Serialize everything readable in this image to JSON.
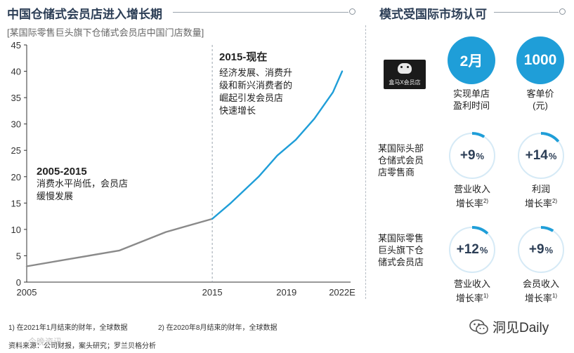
{
  "left_header": "中国仓储式会员店进入增长期",
  "right_header": "模式受国际市场认可",
  "chart_subtitle": "[某国际零售巨头旗下仓储式会员店中国门店数量]",
  "chart_data": {
    "type": "line",
    "title": "中国仓储式会员店进入增长期",
    "subtitle": "[某国际零售巨头旗下仓储式会员店中国门店数量]",
    "xlim": [
      2005,
      2022
    ],
    "ylim": [
      0,
      45
    ],
    "y_ticks": [
      "0",
      "5",
      "10",
      "15",
      "20",
      "25",
      "30",
      "35",
      "40",
      "45"
    ],
    "x_ticks": [
      {
        "value": 2005,
        "label": "2005"
      },
      {
        "value": 2015,
        "label": "2015"
      },
      {
        "value": 2019,
        "label": "2019"
      },
      {
        "value": 2022,
        "label": "2022E"
      }
    ],
    "series": [
      {
        "color": "#8a8a8a",
        "points": [
          [
            2005,
            3
          ],
          [
            2007.5,
            4.5
          ],
          [
            2010,
            6
          ],
          [
            2012.5,
            9.5
          ],
          [
            2015,
            12
          ]
        ]
      },
      {
        "color": "#1f9ed8",
        "points": [
          [
            2015,
            12
          ],
          [
            2016,
            15
          ],
          [
            2017.5,
            20
          ],
          [
            2018.5,
            24
          ],
          [
            2019.5,
            27
          ],
          [
            2020.5,
            31
          ],
          [
            2021.5,
            36
          ],
          [
            2022,
            40
          ]
        ]
      }
    ],
    "divider_x": 2015,
    "annotations": [
      {
        "title": "2005-2015",
        "lines": [
          "消费水平尚低，会员店",
          "缓慢发展"
        ]
      },
      {
        "title": "2015-现在",
        "lines": [
          "经济发展、消费升",
          "级和新兴消费者的",
          "崛起引发会员店",
          "快速增长"
        ]
      }
    ]
  },
  "logo_text": "盒马X会员店",
  "metrics_top": [
    {
      "value": "2月",
      "label_lines": [
        "实现单店",
        "盈利时间"
      ]
    },
    {
      "value": "1000",
      "label_lines": [
        "客单价",
        "(元)"
      ]
    }
  ],
  "rows": [
    {
      "label_lines": [
        "某国际头部",
        "仓储式会员",
        "店零售商"
      ],
      "items": [
        {
          "value": "+9",
          "unit": "%",
          "fraction": 0.09,
          "label_lines": [
            "营业收入",
            "增长率"
          ],
          "footnote": "2)"
        },
        {
          "value": "+14",
          "unit": "%",
          "fraction": 0.14,
          "label_lines": [
            "利润",
            "增长率"
          ],
          "footnote": "2)"
        }
      ]
    },
    {
      "label_lines": [
        "某国际零售",
        "巨头旗下仓",
        "储式会员店"
      ],
      "items": [
        {
          "value": "+12",
          "unit": "%",
          "fraction": 0.12,
          "label_lines": [
            "营业收入",
            "增长率"
          ],
          "footnote": "1)"
        },
        {
          "value": "+9",
          "unit": "%",
          "fraction": 0.09,
          "label_lines": [
            "会员收入",
            "增长率"
          ],
          "footnote": "1)"
        }
      ]
    }
  ],
  "footnotes": {
    "note1": "1) 在2021年1月结束的财年，全球数据",
    "note2": "2) 在2020年8月结束的财年，全球数据",
    "source": "资料来源：公司财报，案头研究；罗兰贝格分析"
  },
  "watermark": "洞见Daily",
  "watermark_left": "今晚资讯",
  "colors": {
    "accent": "#1f9ed8",
    "gray_line": "#8a8a8a",
    "header": "#2c3e56",
    "ring_track": "#d6eaf6"
  },
  "icons": {
    "wechat": "wechat-icon",
    "header_dot": "circle-dot-icon"
  }
}
